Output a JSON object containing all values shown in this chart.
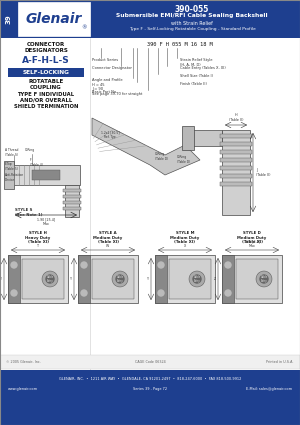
{
  "title_number": "390-055",
  "title_main": "Submersible EMI/RFI Cable Sealing Backshell",
  "title_sub1": "with Strain Relief",
  "title_sub2": "Type F - Self-Locking Rotatable Coupling - Standard Profile",
  "series_label": "39",
  "header_bg": "#1e3f8f",
  "connector_designators_title": "CONNECTOR\nDESIGNATORS",
  "connector_designators": "A-F-H-L-S",
  "self_locking": "SELF-LOCKING",
  "rotatable_coupling": "ROTATABLE\nCOUPLING",
  "type_f_text": "TYPE F INDIVIDUAL\nAND/OR OVERALL\nSHIELD TERMINATION",
  "part_number_example": "390 F H 055 M 16 18 M",
  "pn_labels_left": [
    [
      "Product Series",
      0.0
    ],
    [
      "Connector Designator",
      0.18
    ],
    [
      "Angle and Profile\nH = 45\nJ = 90\nSee page 39-70 for straight",
      0.35
    ],
    [
      "Basic Part No.",
      0.62
    ]
  ],
  "pn_labels_right": [
    [
      "Strain Relief Style\n(H, A, M, D)",
      1.0
    ],
    [
      "Cable Entry (Tables X, XI)",
      0.82
    ],
    [
      "Shell Size (Table I)",
      0.68
    ],
    [
      "Finish (Table II)",
      0.56
    ]
  ],
  "footer_line1": "GLENAIR, INC.  •  1211 AIR WAY  •  GLENDALE, CA 91201-2497  •  818-247-6000  •  FAX 818-500-9912",
  "footer_line2": "www.glenair.com",
  "footer_line3": "Series 39 - Page 72",
  "footer_line4": "E-Mail: sales@glenair.com",
  "copyright": "© 2005 Glenair, Inc.",
  "cage_code": "CAGE Code 06324",
  "printed": "Printed in U.S.A.",
  "bg_color": "#ffffff",
  "watermark_color": "#dce8f5"
}
